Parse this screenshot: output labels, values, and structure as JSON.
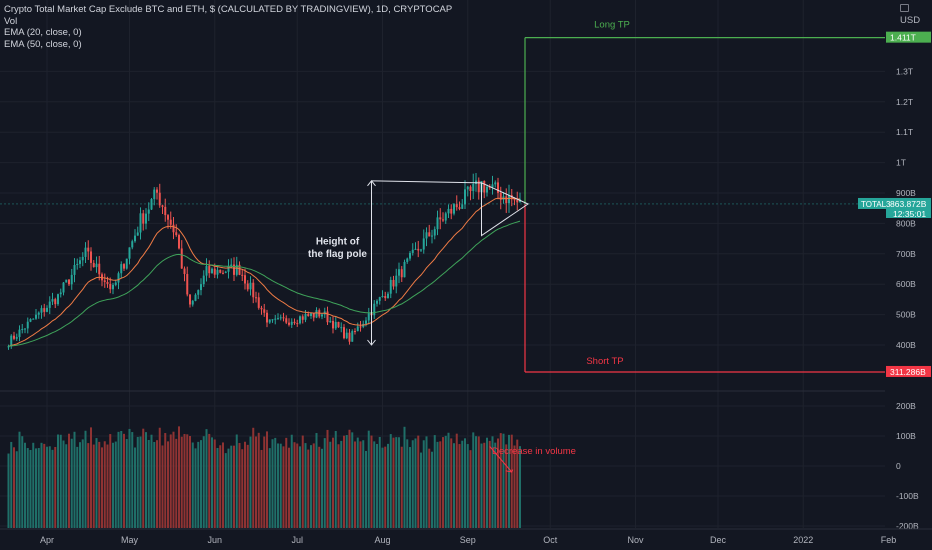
{
  "legend": {
    "title": "Crypto Total Market Cap Exclude BTC and ETH, $ (CALCULATED BY TRADINGVIEW), 1D, CRYPTOCAP",
    "line2": "Vol",
    "line3": "EMA (20, close, 0)",
    "line4": "EMA (50, close, 0)"
  },
  "currency": "USD",
  "price_axis": {
    "ticks": [
      "1.3T",
      "1.2T",
      "1.1T",
      "1T",
      "900B",
      "800B",
      "700B",
      "600B",
      "500B",
      "400B"
    ],
    "tick_values": [
      1300,
      1200,
      1100,
      1000,
      900,
      800,
      700,
      600,
      500,
      400
    ],
    "current_symbol": "TOTAL3",
    "current_value": "863.872B",
    "countdown": "12:35:01",
    "long_tp_value": "1.411T",
    "short_tp_value": "311.286B",
    "colors": {
      "current": "#26a69a",
      "long": "#4caf50",
      "short": "#f23645"
    }
  },
  "volume_axis": {
    "ticks": [
      "200B",
      "100B",
      "0",
      "-100B",
      "-200B"
    ],
    "tick_values": [
      200,
      100,
      0,
      -100,
      -200
    ]
  },
  "time_axis": {
    "labels": [
      "Apr",
      "May",
      "Jun",
      "Jul",
      "Aug",
      "Sep",
      "Oct",
      "Nov",
      "Dec",
      "2022",
      "Feb"
    ]
  },
  "annotations": {
    "flag_pole": "Height of\nthe flag pole",
    "long_tp": "Long TP",
    "short_tp": "Short TP",
    "volume": "Decrease in volume"
  },
  "chart_data": {
    "type": "candlestick",
    "price_unit": "B USD",
    "x_range": [
      "2021-03-18",
      "2022-02-15"
    ],
    "series": [
      {
        "name": "Price",
        "values": "~186 daily candles, 2021-03-18 to 2021-09-20, ranging approx. 390B to 980B"
      },
      {
        "name": "EMA (20, close, 0)",
        "values": "smoothed close"
      },
      {
        "name": "EMA (50, close, 0)",
        "values": "smoothed close"
      },
      {
        "name": "Vol",
        "values": "daily volume, 0 to ~230B"
      }
    ],
    "anchors": [
      {
        "date": "2021-03-18",
        "close": 410
      },
      {
        "date": "2021-04-05",
        "close": 560
      },
      {
        "date": "2021-04-15",
        "close": 700
      },
      {
        "date": "2021-04-25",
        "close": 580
      },
      {
        "date": "2021-05-05",
        "close": 810
      },
      {
        "date": "2021-05-11",
        "close": 900
      },
      {
        "date": "2021-05-18",
        "close": 760
      },
      {
        "date": "2021-05-23",
        "close": 520
      },
      {
        "date": "2021-05-29",
        "close": 640
      },
      {
        "date": "2021-06-10",
        "close": 650
      },
      {
        "date": "2021-06-21",
        "close": 470
      },
      {
        "date": "2021-07-10",
        "close": 505
      },
      {
        "date": "2021-07-20",
        "close": 420
      },
      {
        "date": "2021-08-06",
        "close": 620
      },
      {
        "date": "2021-08-22",
        "close": 810
      },
      {
        "date": "2021-09-06",
        "close": 930
      },
      {
        "date": "2021-09-20",
        "close": 864
      }
    ],
    "ema20_end": 840,
    "ema50_end": 780,
    "levels": {
      "long_tp": 1411,
      "short_tp": 311.286,
      "current": 863.872
    },
    "flag_pole": {
      "from": 400,
      "to": 940
    },
    "ylim": [
      330,
      1470
    ]
  }
}
